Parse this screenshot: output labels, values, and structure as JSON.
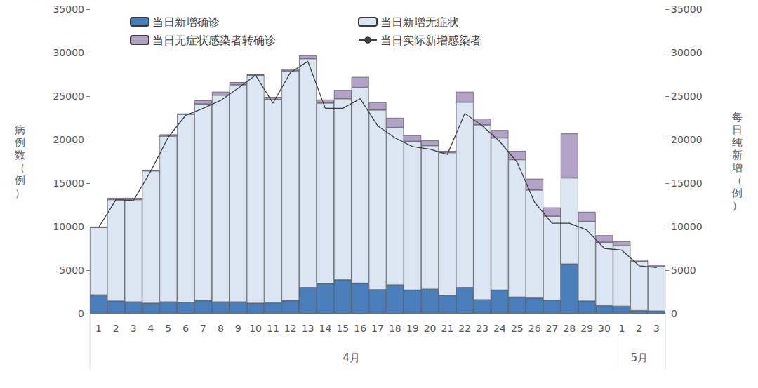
{
  "chart_data": {
    "type": "bar",
    "stacked": true,
    "categories": [
      "1",
      "2",
      "3",
      "4",
      "5",
      "6",
      "7",
      "8",
      "9",
      "10",
      "11",
      "12",
      "13",
      "14",
      "15",
      "16",
      "17",
      "18",
      "19",
      "20",
      "21",
      "22",
      "23",
      "24",
      "25",
      "26",
      "27",
      "28",
      "29",
      "30",
      "1",
      "2",
      "3"
    ],
    "x_groups": [
      {
        "label": "4月",
        "count": 30
      },
      {
        "label": "5月",
        "count": 3
      }
    ],
    "y_label": "病例数（例）",
    "y2_label": "每日纯新增（例）",
    "ylim": [
      0,
      35000
    ],
    "yticks": [
      0,
      5000,
      10000,
      15000,
      20000,
      25000,
      30000,
      35000
    ],
    "y2lim": [
      0,
      35000
    ],
    "y2ticks": [
      0,
      5000,
      10000,
      15000,
      20000,
      25000,
      30000,
      35000
    ],
    "grid": false,
    "legend": "upper left",
    "series": [
      {
        "name": "当日新增确诊",
        "type": "bar",
        "color": "#4a7ebb",
        "values": [
          2150,
          1450,
          1350,
          1200,
          1350,
          1300,
          1500,
          1350,
          1350,
          1200,
          1250,
          1500,
          3000,
          3450,
          3900,
          3500,
          2750,
          3300,
          2700,
          2800,
          2100,
          3000,
          1600,
          2700,
          1900,
          1800,
          1550,
          5700,
          1450,
          900,
          850,
          350,
          300
        ]
      },
      {
        "name": "当日新增无症状",
        "type": "bar",
        "color": "#dce6f2",
        "values": [
          7750,
          11650,
          11750,
          15200,
          19050,
          21600,
          22600,
          23750,
          24950,
          26200,
          23350,
          26400,
          26300,
          20750,
          20800,
          22500,
          20650,
          18100,
          17100,
          16500,
          16400,
          21300,
          20100,
          17500,
          15800,
          12400,
          9650,
          9900,
          9150,
          7300,
          6950,
          5650,
          5100
        ]
      },
      {
        "name": "当日无症状感染者转确诊",
        "type": "bar",
        "color": "#b3a2c7",
        "values": [
          100,
          200,
          200,
          100,
          200,
          100,
          400,
          400,
          300,
          100,
          300,
          200,
          400,
          400,
          1000,
          1200,
          900,
          1100,
          700,
          600,
          200,
          1200,
          700,
          900,
          1000,
          1300,
          1000,
          5100,
          1100,
          800,
          500,
          200,
          200
        ]
      },
      {
        "name": "当日实际新增感染者",
        "type": "line",
        "axis": "y2",
        "color": "#404040",
        "values": [
          9900,
          13100,
          13000,
          16400,
          20300,
          22800,
          23600,
          24500,
          25900,
          27400,
          24200,
          27700,
          29000,
          23600,
          23600,
          24700,
          21600,
          20200,
          19200,
          18900,
          18300,
          23000,
          21600,
          19800,
          17400,
          12800,
          10400,
          10400,
          9600,
          7500,
          7300,
          5500,
          5300
        ]
      }
    ]
  }
}
